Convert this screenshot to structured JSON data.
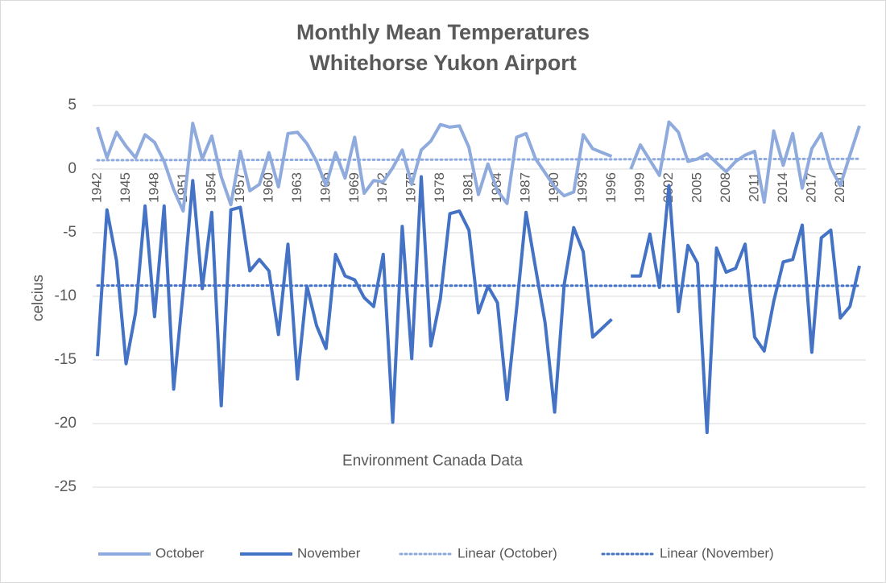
{
  "chart_data": {
    "type": "line",
    "title": [
      "Monthly Mean Temperatures",
      "Whitehorse Yukon Airport"
    ],
    "y_label": "celcius",
    "annotation": "Environment Canada Data",
    "categories": [
      "1942",
      null,
      null,
      "1945",
      null,
      null,
      "1948",
      null,
      null,
      "1951",
      null,
      null,
      "1954",
      null,
      null,
      "1957",
      null,
      null,
      "1960",
      null,
      null,
      "1963",
      null,
      null,
      "1966",
      null,
      null,
      "1969",
      null,
      null,
      "1972",
      null,
      null,
      "1975",
      null,
      null,
      "1978",
      null,
      null,
      "1981",
      null,
      null,
      "1984",
      null,
      null,
      "1987",
      null,
      null,
      "1990",
      null,
      null,
      "1993",
      null,
      null,
      "1996",
      null,
      null,
      "1999",
      null,
      null,
      "2002",
      null,
      null,
      "2005",
      null,
      null,
      "2008",
      null,
      null,
      "2011",
      null,
      null,
      "2014",
      null,
      null,
      "2017",
      null,
      null,
      "2020",
      null,
      null
    ],
    "series": [
      {
        "name": "October",
        "color": "#8FAADC",
        "values": [
          3.3,
          0.9,
          2.9,
          1.8,
          0.9,
          2.7,
          2.1,
          0.6,
          -1.6,
          -3.3,
          3.6,
          0.8,
          2.6,
          -0.6,
          -2.8,
          1.4,
          -1.7,
          -1.2,
          1.3,
          -1.4,
          2.8,
          2.9,
          2.0,
          0.6,
          -1.3,
          1.3,
          -0.7,
          2.5,
          -1.9,
          -0.9,
          -1.0,
          0.1,
          1.5,
          -1.2,
          1.5,
          2.2,
          3.5,
          3.3,
          3.4,
          1.7,
          -2.0,
          0.4,
          -1.7,
          -2.7,
          2.5,
          2.8,
          0.8,
          -0.3,
          -1.4,
          -2.1,
          -1.8,
          2.7,
          1.6,
          1.3,
          1.0,
          null,
          0.0,
          1.9,
          0.7,
          -0.5,
          3.7,
          2.9,
          0.6,
          0.8,
          1.2,
          0.5,
          -0.2,
          0.6,
          1.1,
          1.4,
          -2.6,
          3.0,
          0.3,
          2.8,
          -1.5,
          1.6,
          2.8,
          0.1,
          -1.3,
          1.1,
          3.4
        ]
      },
      {
        "name": "November",
        "color": "#4472C4",
        "values": [
          -14.7,
          -3.2,
          -7.2,
          -15.3,
          -11.3,
          -2.9,
          -11.6,
          -2.9,
          -17.3,
          -9.6,
          -0.9,
          -9.4,
          -3.4,
          -18.6,
          -3.2,
          -3.0,
          -8.0,
          -7.1,
          -8.0,
          -13.0,
          -5.9,
          -16.5,
          -9.2,
          -12.3,
          -14.1,
          -6.7,
          -8.4,
          -8.7,
          -10.1,
          -10.8,
          -6.7,
          -19.9,
          -4.5,
          -14.9,
          -0.6,
          -13.9,
          -10.2,
          -3.5,
          -3.3,
          -4.8,
          -11.3,
          -9.2,
          -10.5,
          -18.1,
          -11.0,
          -3.4,
          -7.8,
          -12.1,
          -19.1,
          -9.1,
          -4.6,
          -6.5,
          -13.2,
          -12.5,
          -11.8,
          null,
          -8.4,
          -8.4,
          -5.1,
          -9.3,
          -1.3,
          -11.2,
          -6.0,
          -7.4,
          -20.7,
          -6.2,
          -8.1,
          -7.8,
          -5.9,
          -13.2,
          -14.3,
          -10.4,
          -7.3,
          -7.1,
          -4.4,
          -14.4,
          -5.4,
          -4.8,
          -11.7,
          -10.8,
          -7.6
        ]
      }
    ],
    "trendlines": [
      {
        "name": "Linear (October)",
        "of_series": 0,
        "color": "#8FAADC"
      },
      {
        "name": "Linear (November)",
        "of_series": 1,
        "color": "#4472C4"
      }
    ],
    "ylim": [
      -25,
      5
    ],
    "yticks": [
      5,
      0,
      -5,
      -10,
      -15,
      -20,
      -25
    ],
    "grid": true,
    "legend": "bottom"
  }
}
